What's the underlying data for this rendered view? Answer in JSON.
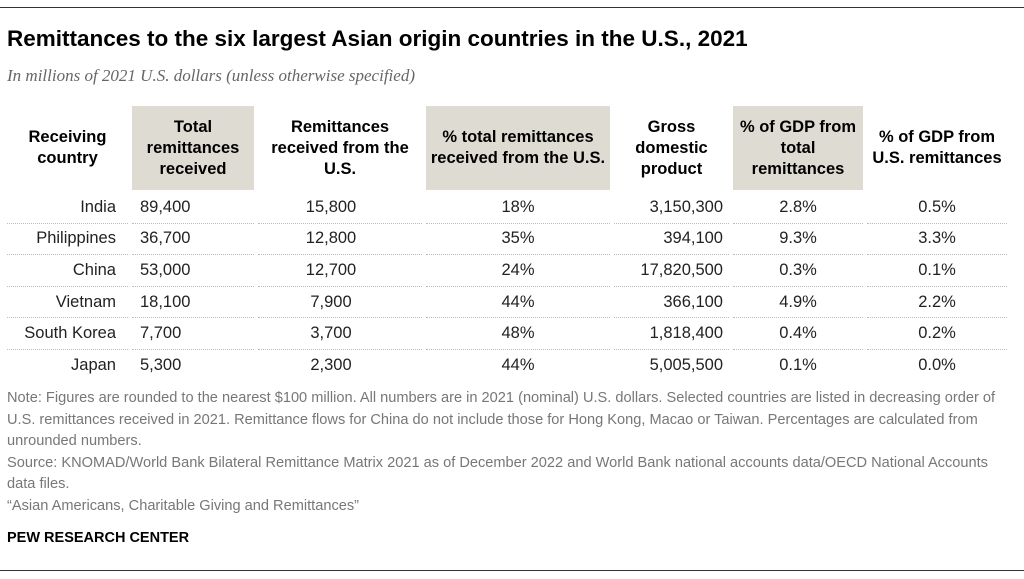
{
  "title": "Remittances to the six largest Asian origin countries in the U.S., 2021",
  "subtitle": "In millions of 2021 U.S. dollars (unless otherwise specified)",
  "table": {
    "headers": {
      "country": "Receiving country",
      "total": "Total remittances received",
      "us": "Remittances received from the U.S.",
      "pct_us": "% total remittances received from the U.S.",
      "gdp": "Gross domestic product",
      "gdp_total": "% of GDP from total remittances",
      "gdp_us": "% of GDP from U.S. remittances"
    },
    "rows": [
      {
        "country": "India",
        "total": "89,400",
        "us": "15,800",
        "pct_us": "18%",
        "gdp": "3,150,300",
        "gdp_total": "2.8%",
        "gdp_us": "0.5%"
      },
      {
        "country": "Philippines",
        "total": "36,700",
        "us": "12,800",
        "pct_us": "35%",
        "gdp": "394,100",
        "gdp_total": "9.3%",
        "gdp_us": "3.3%"
      },
      {
        "country": "China",
        "total": "53,000",
        "us": "12,700",
        "pct_us": "24%",
        "gdp": "17,820,500",
        "gdp_total": "0.3%",
        "gdp_us": "0.1%"
      },
      {
        "country": "Vietnam",
        "total": "18,100",
        "us": "7,900",
        "pct_us": "44%",
        "gdp": "366,100",
        "gdp_total": "4.9%",
        "gdp_us": "2.2%"
      },
      {
        "country": "South Korea",
        "total": "7,700",
        "us": "3,700",
        "pct_us": "48%",
        "gdp": "1,818,400",
        "gdp_total": "0.4%",
        "gdp_us": "0.2%"
      },
      {
        "country": "Japan",
        "total": "5,300",
        "us": "2,300",
        "pct_us": "44%",
        "gdp": "5,005,500",
        "gdp_total": "0.1%",
        "gdp_us": "0.0%"
      }
    ]
  },
  "footnotes": {
    "note": "Note: Figures are rounded to the nearest $100 million. All numbers are in 2021 (nominal) U.S. dollars. Selected countries are listed in decreasing order of U.S. remittances received in 2021. Remittance flows for China do not include those for Hong Kong, Macao or Taiwan. Percentages are calculated from unrounded numbers.",
    "source": "Source: KNOMAD/World Bank Bilateral Remittance Matrix 2021 as of December 2022 and World Bank national accounts data/OECD National Accounts data files.",
    "report": "“Asian Americans, Charitable Giving and Remittances”"
  },
  "brand": "PEW RESEARCH CENTER"
}
